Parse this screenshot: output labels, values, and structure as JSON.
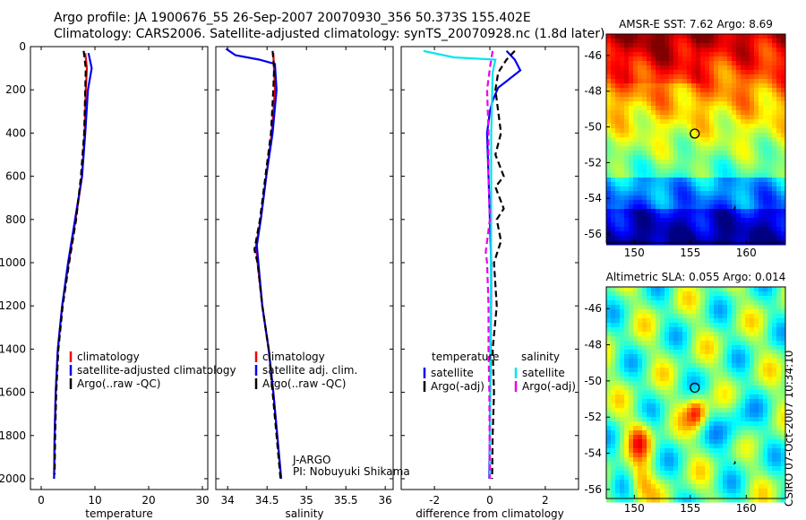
{
  "header": {
    "line1": "Argo profile: JA 1900676_55 26-Sep-2007 20070930_356 50.373S 155.402E",
    "line2": "Climatology: CARS2006. Satellite-adjusted climatology: synTS_20070928.nc (1.8d later)"
  },
  "stamp": "CSIRO 07-Oct-2007 10:34:10",
  "colors": {
    "climatology": "#ee0000",
    "satellite": "#0000ee",
    "argo": "#000000",
    "sat_salinity": "#00e5ee",
    "argo_salinity_diff": "#ee00ee"
  },
  "chart_data": [
    {
      "type": "line",
      "xlabel": "temperature",
      "xlim": [
        -2,
        31
      ],
      "ylim": [
        0,
        2050
      ],
      "y_reversed": true,
      "xticks": [
        0,
        10,
        20,
        30
      ],
      "yticks": [
        0,
        200,
        400,
        600,
        800,
        1000,
        1200,
        1400,
        1600,
        1800,
        2000
      ],
      "series": [
        {
          "name": "climatology",
          "color": "#ee0000",
          "points": [
            [
              8.2,
              30
            ],
            [
              8.5,
              100
            ],
            [
              8.3,
              200
            ],
            [
              8.1,
              400
            ],
            [
              7.6,
              600
            ],
            [
              6.4,
              800
            ],
            [
              5.1,
              1000
            ],
            [
              3.9,
              1200
            ],
            [
              3.1,
              1400
            ],
            [
              2.7,
              1600
            ],
            [
              2.5,
              1800
            ],
            [
              2.4,
              2000
            ]
          ]
        },
        {
          "name": "satellite-adjusted climatology",
          "color": "#0000ee",
          "points": [
            [
              8.8,
              30
            ],
            [
              9.4,
              100
            ],
            [
              8.7,
              200
            ],
            [
              8.2,
              400
            ],
            [
              7.6,
              600
            ],
            [
              6.3,
              800
            ],
            [
              5.0,
              1000
            ],
            [
              3.9,
              1200
            ],
            [
              3.1,
              1400
            ],
            [
              2.7,
              1600
            ],
            [
              2.5,
              1800
            ],
            [
              2.4,
              2000
            ]
          ]
        },
        {
          "name": "Argo(..raw -QC)",
          "color": "#000000",
          "dash": true,
          "points": [
            [
              7.9,
              20
            ],
            [
              8.3,
              100
            ],
            [
              8.2,
              200
            ],
            [
              8.0,
              400
            ],
            [
              7.4,
              600
            ],
            [
              6.5,
              800
            ],
            [
              5.2,
              1000
            ],
            [
              4.0,
              1200
            ],
            [
              3.2,
              1400
            ],
            [
              2.8,
              1600
            ],
            [
              2.6,
              1800
            ],
            [
              2.5,
              1980
            ]
          ]
        }
      ],
      "legend": {
        "labels": [
          "climatology",
          "satellite-adjusted climatology",
          "Argo(..raw -QC)"
        ],
        "position": "lower-right"
      }
    },
    {
      "type": "line",
      "xlabel": "salinity",
      "xlim": [
        33.85,
        36.1
      ],
      "ylim": [
        0,
        2050
      ],
      "y_reversed": true,
      "xticks": [
        "34",
        "34.5",
        "35",
        "35.5",
        "36"
      ],
      "yticks": [
        0,
        200,
        400,
        600,
        800,
        1000,
        1200,
        1400,
        1600,
        1800,
        2000
      ],
      "series": [
        {
          "name": "climatology",
          "color": "#ee0000",
          "points": [
            [
              34.58,
              30
            ],
            [
              34.6,
              200
            ],
            [
              34.56,
              400
            ],
            [
              34.49,
              600
            ],
            [
              34.42,
              800
            ],
            [
              34.36,
              920
            ],
            [
              34.38,
              1000
            ],
            [
              34.44,
              1200
            ],
            [
              34.52,
              1400
            ],
            [
              34.58,
              1600
            ],
            [
              34.63,
              1800
            ],
            [
              34.68,
              2000
            ]
          ]
        },
        {
          "name": "satellite adj. clim.",
          "color": "#0000ee",
          "points": [
            [
              33.98,
              10
            ],
            [
              34.1,
              40
            ],
            [
              34.4,
              60
            ],
            [
              34.6,
              80
            ],
            [
              34.62,
              200
            ],
            [
              34.57,
              400
            ],
            [
              34.49,
              600
            ],
            [
              34.42,
              800
            ],
            [
              34.37,
              920
            ],
            [
              34.39,
              1000
            ],
            [
              34.44,
              1200
            ],
            [
              34.52,
              1400
            ],
            [
              34.58,
              1600
            ],
            [
              34.63,
              1800
            ],
            [
              34.68,
              2000
            ]
          ]
        },
        {
          "name": "Argo(..raw -QC)",
          "color": "#000000",
          "dash": true,
          "points": [
            [
              34.57,
              20
            ],
            [
              34.59,
              100
            ],
            [
              34.58,
              200
            ],
            [
              34.55,
              400
            ],
            [
              34.48,
              600
            ],
            [
              34.41,
              800
            ],
            [
              34.34,
              940
            ],
            [
              34.38,
              1000
            ],
            [
              34.44,
              1200
            ],
            [
              34.52,
              1400
            ],
            [
              34.57,
              1600
            ],
            [
              34.62,
              1800
            ],
            [
              34.67,
              2000
            ]
          ]
        }
      ],
      "legend": {
        "labels": [
          "climatology",
          "satellite adj. clim.",
          "Argo(..raw -QC)"
        ],
        "position": "lower-right"
      },
      "annotation": [
        "J-ARGO",
        "PI: Nobuyuki Shikama"
      ]
    },
    {
      "type": "line",
      "xlabel": "difference from climatology",
      "xlim": [
        -3.2,
        3.2
      ],
      "ylim": [
        0,
        2050
      ],
      "y_reversed": true,
      "xticks": [
        -2,
        0,
        2
      ],
      "yticks": [
        0,
        200,
        400,
        600,
        800,
        1000,
        1200,
        1400,
        1600,
        1800,
        2000
      ],
      "series": [
        {
          "name": "temperature satellite",
          "color": "#0000ee",
          "points": [
            [
              0.6,
              20
            ],
            [
              0.9,
              60
            ],
            [
              1.1,
              110
            ],
            [
              0.6,
              160
            ],
            [
              0.3,
              190
            ],
            [
              0.1,
              250
            ],
            [
              0.0,
              300
            ],
            [
              -0.1,
              400
            ],
            [
              -0.05,
              600
            ],
            [
              0.0,
              800
            ],
            [
              0.05,
              1000
            ],
            [
              0.03,
              1400
            ],
            [
              0.0,
              1800
            ],
            [
              -0.02,
              2000
            ]
          ]
        },
        {
          "name": "temperature Argo(-adj)",
          "color": "#000000",
          "dash": true,
          "points": [
            [
              0.9,
              20
            ],
            [
              0.6,
              60
            ],
            [
              0.3,
              120
            ],
            [
              0.2,
              200
            ],
            [
              0.4,
              400
            ],
            [
              0.2,
              500
            ],
            [
              0.5,
              600
            ],
            [
              0.2,
              650
            ],
            [
              0.5,
              750
            ],
            [
              0.25,
              800
            ],
            [
              0.4,
              900
            ],
            [
              0.15,
              1000
            ],
            [
              0.25,
              1200
            ],
            [
              0.1,
              1400
            ],
            [
              0.15,
              1600
            ],
            [
              0.1,
              1800
            ],
            [
              0.08,
              2000
            ]
          ]
        },
        {
          "name": "salinity satellite",
          "color": "#00e5ee",
          "points": [
            [
              -2.4,
              20
            ],
            [
              -1.3,
              50
            ],
            [
              0.2,
              60
            ],
            [
              0.1,
              120
            ],
            [
              0.05,
              400
            ],
            [
              0.05,
              800
            ],
            [
              0.03,
              1200
            ],
            [
              0.02,
              1600
            ],
            [
              0.0,
              2000
            ]
          ]
        },
        {
          "name": "salinity Argo(-adj)",
          "color": "#ee00ee",
          "dash": true,
          "points": [
            [
              0.1,
              20
            ],
            [
              0.0,
              100
            ],
            [
              -0.1,
              200
            ],
            [
              -0.05,
              400
            ],
            [
              -0.05,
              600
            ],
            [
              0.0,
              800
            ],
            [
              -0.15,
              950
            ],
            [
              -0.1,
              1000
            ],
            [
              -0.05,
              1200
            ],
            [
              -0.05,
              1400
            ],
            [
              -0.02,
              1600
            ],
            [
              -0.01,
              1800
            ],
            [
              0.0,
              2000
            ]
          ]
        }
      ],
      "legend": {
        "headers": [
          "temperature",
          "salinity"
        ],
        "labels": [
          "satellite",
          "Argo(-adj)",
          "satellite",
          "Argo(-adj)"
        ],
        "position": "lower-center"
      }
    },
    {
      "type": "heatmap",
      "title": "AMSR-E SST: 7.62 Argo: 8.69",
      "xlim": [
        147.5,
        163.5
      ],
      "ylim": [
        -56.5,
        -44.8
      ],
      "xticks": [
        150,
        155,
        160
      ],
      "yticks": [
        -46,
        -48,
        -50,
        -52,
        -54,
        -56
      ],
      "marker": [
        155.402,
        -50.373
      ]
    },
    {
      "type": "heatmap",
      "title": "Altimetric SLA: 0.055 Argo: 0.014",
      "xlim": [
        147.5,
        163.5
      ],
      "ylim": [
        -56.5,
        -44.8
      ],
      "xticks": [
        150,
        155,
        160
      ],
      "yticks": [
        -46,
        -48,
        -50,
        -52,
        -54,
        -56
      ],
      "marker": [
        155.402,
        -50.373
      ]
    }
  ]
}
